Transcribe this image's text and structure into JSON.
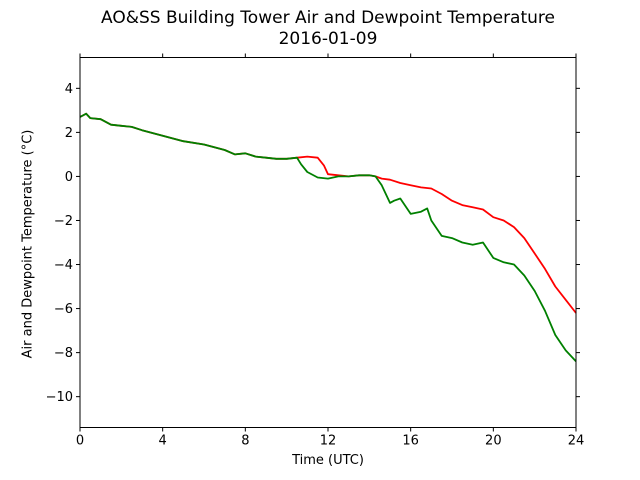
{
  "chart_data": {
    "type": "line",
    "title": "AO&SS Building Tower Air and Dewpoint Temperature",
    "subtitle": "2016-01-09",
    "xlabel": "Time (UTC)",
    "ylabel": "Air and Dewpoint Temperature (°C)",
    "xlim": [
      0,
      24
    ],
    "ylim": [
      -11.4,
      5.4
    ],
    "xticks": [
      0,
      4,
      8,
      12,
      16,
      20,
      24
    ],
    "yticks": [
      4,
      2,
      0,
      -2,
      -4,
      -6,
      -8,
      -10
    ],
    "ytick_labels": [
      "4",
      "2",
      "0",
      "−2",
      "−4",
      "−6",
      "−8",
      "−10"
    ],
    "grid": false,
    "legend": "none",
    "series": [
      {
        "color": "#ff0000",
        "x": [
          0,
          0.3,
          0.5,
          1,
          1.5,
          2,
          2.5,
          3,
          4,
          5,
          6,
          7,
          7.5,
          8,
          8.5,
          9,
          9.5,
          10,
          10.5,
          11,
          11.5,
          11.8,
          12,
          12.5,
          13,
          13.5,
          14,
          14.3,
          14.6,
          15,
          15.5,
          16,
          16.5,
          17,
          17.5,
          18,
          18.5,
          19,
          19.5,
          20,
          20.5,
          21,
          21.5,
          22,
          22.5,
          23,
          23.5,
          24
        ],
        "values": [
          2.7,
          2.85,
          2.65,
          2.6,
          2.35,
          2.3,
          2.25,
          2.1,
          1.85,
          1.6,
          1.45,
          1.2,
          1.0,
          1.05,
          0.9,
          0.85,
          0.8,
          0.8,
          0.85,
          0.9,
          0.85,
          0.5,
          0.1,
          0.05,
          0.0,
          0.05,
          0.05,
          0.0,
          -0.1,
          -0.15,
          -0.3,
          -0.4,
          -0.5,
          -0.55,
          -0.8,
          -1.1,
          -1.3,
          -1.4,
          -1.5,
          -1.85,
          -2.0,
          -2.3,
          -2.8,
          -3.5,
          -4.2,
          -5.0,
          -5.6,
          -6.2
        ]
      },
      {
        "color": "#008000",
        "x": [
          0,
          0.3,
          0.5,
          1,
          1.5,
          2,
          2.5,
          3,
          4,
          5,
          6,
          7,
          7.5,
          8,
          8.5,
          9,
          9.5,
          10,
          10.5,
          10.7,
          11,
          11.5,
          12,
          12.5,
          13,
          13.5,
          14,
          14.3,
          14.6,
          15,
          15.2,
          15.5,
          16,
          16.5,
          16.8,
          17,
          17.5,
          18,
          18.5,
          19,
          19.5,
          20,
          20.5,
          21,
          21.5,
          22,
          22.5,
          23,
          23.5,
          24
        ],
        "values": [
          2.7,
          2.85,
          2.65,
          2.6,
          2.35,
          2.3,
          2.25,
          2.1,
          1.85,
          1.6,
          1.45,
          1.2,
          1.0,
          1.05,
          0.9,
          0.85,
          0.8,
          0.8,
          0.85,
          0.55,
          0.2,
          -0.05,
          -0.1,
          0.0,
          0.0,
          0.05,
          0.05,
          0.0,
          -0.4,
          -1.2,
          -1.1,
          -1.0,
          -1.7,
          -1.6,
          -1.45,
          -2.0,
          -2.7,
          -2.8,
          -3.0,
          -3.1,
          -3.0,
          -3.7,
          -3.9,
          -4.0,
          -4.5,
          -5.2,
          -6.1,
          -7.2,
          -7.9,
          -8.4
        ]
      }
    ]
  }
}
